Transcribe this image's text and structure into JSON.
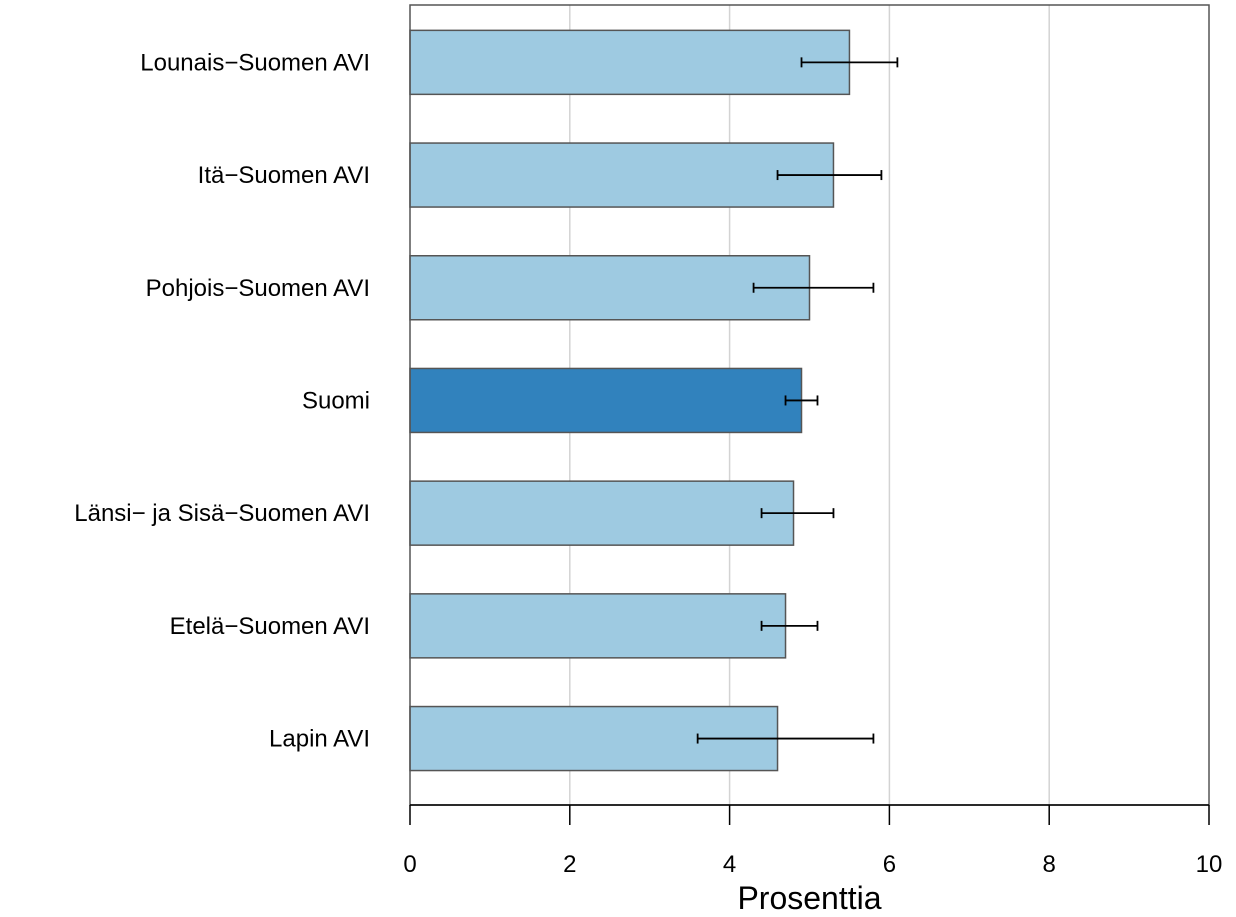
{
  "chart_data": {
    "type": "bar",
    "orientation": "horizontal",
    "categories": [
      "Lounais−Suomen AVI",
      "Itä−Suomen AVI",
      "Pohjois−Suomen AVI",
      "Suomi",
      "Länsi− ja Sisä−Suomen AVI",
      "Etelä−Suomen AVI",
      "Lapin AVI"
    ],
    "values": [
      5.5,
      5.3,
      5.0,
      4.9,
      4.8,
      4.7,
      4.6
    ],
    "error_low": [
      4.9,
      4.6,
      4.3,
      4.7,
      4.4,
      4.4,
      3.6
    ],
    "error_high": [
      6.1,
      5.9,
      5.8,
      5.1,
      5.3,
      5.1,
      5.8
    ],
    "highlight": "Suomi",
    "xlabel": "Prosenttia",
    "xlim": [
      0,
      10
    ],
    "xticks": [
      0,
      2,
      4,
      6,
      8,
      10
    ],
    "grid": true,
    "colors": {
      "bar": "#9ecae1",
      "highlight_bar": "#3182bd",
      "bar_border": "#555555",
      "grid": "#d3d3d3",
      "frame": "#555555",
      "error": "#000000"
    }
  }
}
